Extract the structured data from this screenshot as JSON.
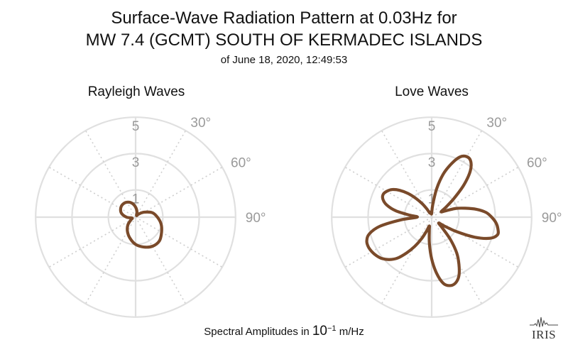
{
  "title_line1": "Surface-Wave Radiation Pattern at 0.03Hz for",
  "title_line2": "MW 7.4 (GCMT) SOUTH OF KERMADEC ISLANDS",
  "title_line3": "of June 18, 2020, 12:49:53",
  "footer": {
    "prefix": "Spectral Amplitudes in ",
    "base": "10",
    "exponent": "−1",
    "unit": " m/Hz"
  },
  "logo_text": "IRIS",
  "colors": {
    "pattern": "#7a4a2a",
    "grid": "#e0e0e0",
    "tick": "#9a9a9a"
  },
  "chart_data": [
    {
      "type": "polar-line",
      "title": "Rayleigh Waves",
      "r_ticks": [
        "1",
        "3",
        "5"
      ],
      "angle_ticks": [
        "30°",
        "60°",
        "90°"
      ],
      "rlim": [
        0,
        5.5
      ],
      "theta_unit": "degrees clockwise from north",
      "series": [
        {
          "theta": [
            0,
            15,
            30,
            45,
            60,
            75,
            90,
            105,
            120,
            135,
            150,
            165,
            180,
            195,
            210,
            225,
            240,
            255,
            270,
            285,
            300,
            315,
            330,
            345
          ],
          "r": [
            0.55,
            0.3,
            0.1,
            0.25,
            0.55,
            0.95,
            1.2,
            1.45,
            1.65,
            1.85,
            1.85,
            1.7,
            1.5,
            1.2,
            0.9,
            0.6,
            0.3,
            0.2,
            0.5,
            0.8,
            0.95,
            1.0,
            0.95,
            0.8
          ]
        }
      ]
    },
    {
      "type": "polar-line",
      "title": "Love Waves",
      "r_ticks": [
        "1",
        "3",
        "5"
      ],
      "angle_ticks": [
        "30°",
        "60°",
        "90°"
      ],
      "rlim": [
        0,
        5.5
      ],
      "theta_unit": "degrees clockwise from north",
      "series": [
        {
          "theta": [
            0,
            5,
            10,
            15,
            20,
            25,
            30,
            35,
            40,
            45,
            50,
            55,
            60,
            65,
            70,
            75,
            80,
            85,
            90,
            95,
            100,
            105,
            110,
            115,
            120,
            125,
            130,
            135,
            140,
            145,
            150,
            155,
            160,
            165,
            170,
            175,
            180,
            185,
            190,
            195,
            200,
            205,
            210,
            215,
            220,
            225,
            230,
            235,
            240,
            245,
            250,
            255,
            260,
            265,
            270,
            275,
            280,
            285,
            290,
            295,
            300,
            305,
            310,
            315,
            320,
            325,
            330,
            335,
            340,
            345,
            350,
            355
          ],
          "r": [
            0.22,
            0.7,
            1.6,
            2.45,
            3.1,
            3.65,
            3.85,
            3.75,
            3.3,
            2.5,
            1.6,
            0.95,
            0.6,
            0.8,
            1.4,
            1.9,
            2.5,
            3.0,
            3.3,
            3.55,
            3.7,
            3.75,
            3.4,
            2.6,
            1.6,
            0.85,
            0.5,
            0.8,
            1.6,
            2.4,
            3.0,
            3.55,
            3.85,
            3.9,
            3.7,
            3.1,
            2.3,
            1.45,
            0.75,
            0.5,
            0.8,
            1.3,
            1.85,
            2.4,
            2.95,
            3.3,
            3.55,
            3.7,
            3.8,
            3.85,
            3.8,
            3.55,
            2.9,
            1.7,
            0.8,
            1.2,
            2.0,
            2.55,
            2.85,
            2.95,
            2.85,
            2.65,
            2.3,
            1.85,
            1.35,
            0.9,
            0.5,
            0.25,
            0.3,
            0.25,
            0.2,
            0.18
          ]
        }
      ]
    }
  ]
}
